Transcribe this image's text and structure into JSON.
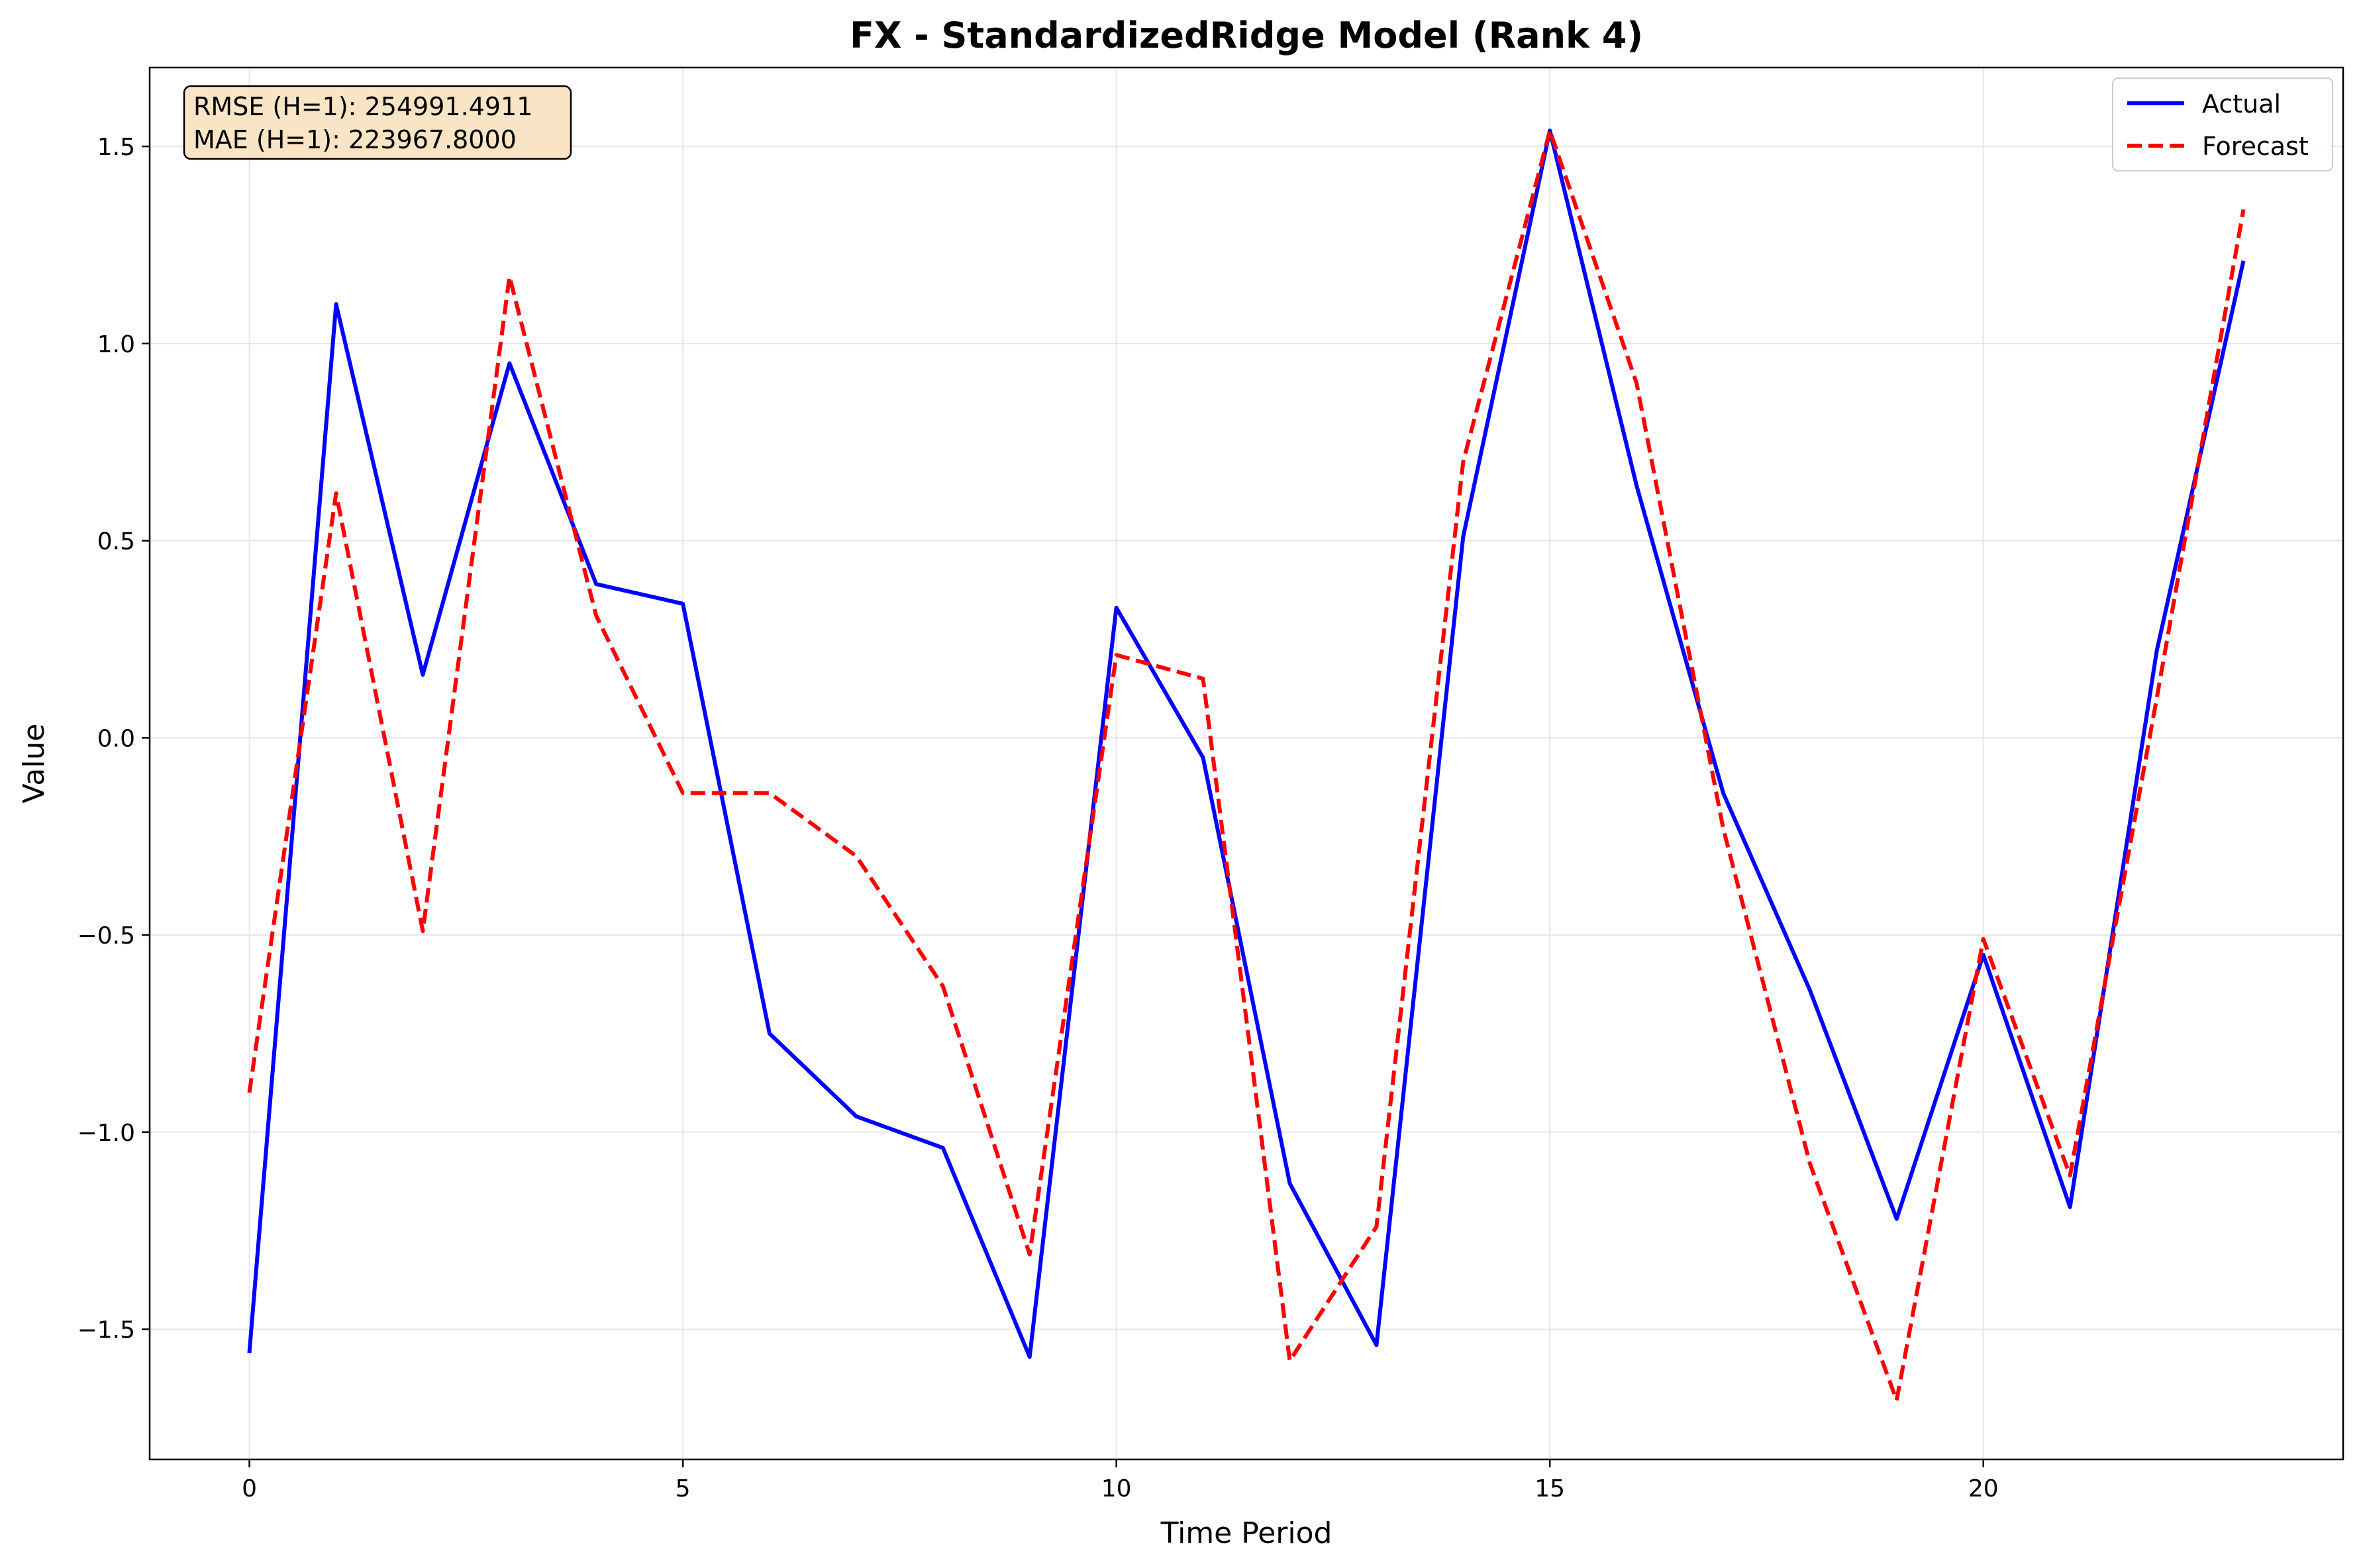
{
  "chart_data": {
    "type": "line",
    "title": "FX - StandardizedRidge Model (Rank 4)",
    "xlabel": "Time Period",
    "ylabel": "Value",
    "x": [
      0,
      1,
      2,
      3,
      4,
      5,
      6,
      7,
      8,
      9,
      10,
      11,
      12,
      13,
      14,
      15,
      16,
      17,
      18,
      19,
      20,
      21,
      22,
      23
    ],
    "xlim": [
      -1.15,
      24.15
    ],
    "ylim": [
      -1.83,
      1.7
    ],
    "xticks": [
      0,
      5,
      10,
      15,
      20
    ],
    "yticks": [
      -1.5,
      -1.0,
      -0.5,
      0.0,
      0.5,
      1.0,
      1.5
    ],
    "xtick_labels": [
      "0",
      "5",
      "10",
      "15",
      "20"
    ],
    "ytick_labels": [
      "−1.5",
      "−1.0",
      "−0.5",
      "0.0",
      "0.5",
      "1.0",
      "1.5"
    ],
    "grid": true,
    "legend": "top-right",
    "series": [
      {
        "name": "Actual",
        "color": "#0000ff",
        "style": "solid",
        "values": [
          -1.56,
          1.1,
          0.16,
          0.95,
          0.39,
          0.34,
          -0.75,
          -0.96,
          -1.04,
          -1.57,
          0.33,
          -0.05,
          -1.13,
          -1.54,
          0.51,
          1.54,
          0.64,
          -0.14,
          -0.64,
          -1.22,
          -0.55,
          -1.19,
          0.22,
          1.21
        ]
      },
      {
        "name": "Forecast",
        "color": "#ff0000",
        "style": "dashed",
        "values": [
          -0.9,
          0.62,
          -0.49,
          1.17,
          0.31,
          -0.14,
          -0.14,
          -0.3,
          -0.63,
          -1.31,
          0.21,
          0.15,
          -1.58,
          -1.24,
          0.7,
          1.54,
          0.9,
          -0.23,
          -1.08,
          -1.68,
          -0.51,
          -1.11,
          0.1,
          1.34
        ]
      }
    ],
    "annotations": {
      "rmse": "RMSE (H=1): 254991.4911",
      "mae": "MAE (H=1): 223967.8000",
      "box_color": "#f9e5c5"
    }
  }
}
